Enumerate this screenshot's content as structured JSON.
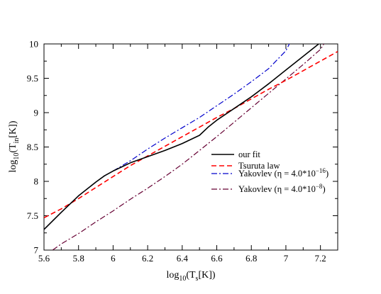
{
  "chart_data": {
    "type": "line",
    "title": "",
    "xlabel": {
      "base": "log",
      "sub": "10",
      "main": "(T",
      "sub2": "s",
      "tail": "[K])"
    },
    "ylabel": {
      "base": "log",
      "sub": "10",
      "main": "(T",
      "sub2": "in",
      "tail": "[K])"
    },
    "xlim": [
      5.6,
      7.3
    ],
    "ylim": [
      7.0,
      10.0
    ],
    "grid": false,
    "legend_position": "lower-right",
    "x_ticks": [
      5.6,
      5.8,
      6.0,
      6.2,
      6.4,
      6.6,
      6.8,
      7.0,
      7.2
    ],
    "x_tick_labels": [
      "5.6",
      "5.8",
      "6",
      "6.2",
      "6.4",
      "6.6",
      "6.8",
      "7",
      "7.2"
    ],
    "y_ticks": [
      7.0,
      7.5,
      8.0,
      8.5,
      9.0,
      9.5,
      10.0
    ],
    "y_tick_labels": [
      "7",
      "7.5",
      "8",
      "8.5",
      "9",
      "9.5",
      "10"
    ],
    "series": [
      {
        "name": "our fit",
        "color": "#000000",
        "dash": "solid",
        "x": [
          5.6,
          5.7,
          5.8,
          5.9,
          5.95,
          6.0,
          6.05,
          6.1,
          6.2,
          6.3,
          6.4,
          6.5,
          6.55,
          6.6,
          6.7,
          6.8,
          6.9,
          7.0,
          7.1,
          7.2
        ],
        "y": [
          7.3,
          7.55,
          7.79,
          7.99,
          8.08,
          8.15,
          8.21,
          8.27,
          8.36,
          8.45,
          8.55,
          8.67,
          8.79,
          8.89,
          9.06,
          9.23,
          9.42,
          9.62,
          9.82,
          10.02
        ]
      },
      {
        "name": "Tsuruta law",
        "color": "#ff0000",
        "dash": "dashed",
        "x": [
          5.6,
          5.7,
          5.8,
          5.9,
          6.0,
          6.1,
          6.2,
          6.3,
          6.4,
          6.5,
          6.6,
          6.7,
          6.8,
          6.9,
          7.0,
          7.1,
          7.2,
          7.3
        ],
        "y": [
          7.47,
          7.6,
          7.75,
          7.91,
          8.07,
          8.23,
          8.37,
          8.51,
          8.65,
          8.79,
          8.93,
          9.06,
          9.2,
          9.34,
          9.47,
          9.61,
          9.75,
          9.89
        ]
      },
      {
        "name": "Yakovlev (η = 4.0*10⁻¹⁶)",
        "color": "#0000cc",
        "dash": "dashdot",
        "x": [
          5.6,
          5.7,
          5.8,
          5.9,
          5.95,
          6.0,
          6.1,
          6.2,
          6.3,
          6.4,
          6.5,
          6.6,
          6.7,
          6.8,
          6.9,
          7.0,
          7.02
        ],
        "y": [
          7.3,
          7.55,
          7.79,
          7.99,
          8.08,
          8.15,
          8.3,
          8.47,
          8.63,
          8.78,
          8.93,
          9.1,
          9.27,
          9.45,
          9.64,
          9.9,
          10.0
        ]
      },
      {
        "name": "Yakovlev (η = 4.0*10⁻⁸)",
        "color": "#660033",
        "dash": "dashdot",
        "x": [
          5.65,
          5.7,
          5.8,
          5.9,
          6.0,
          6.1,
          6.2,
          6.3,
          6.4,
          6.5,
          6.6,
          6.7,
          6.8,
          6.9,
          7.0,
          7.1,
          7.2,
          7.22
        ],
        "y": [
          7.0,
          7.09,
          7.24,
          7.41,
          7.57,
          7.74,
          7.9,
          8.07,
          8.25,
          8.45,
          8.65,
          8.86,
          9.07,
          9.28,
          9.49,
          9.7,
          9.92,
          10.0
        ]
      }
    ],
    "legend": [
      {
        "label": "our fit",
        "color": "#000000",
        "dash": "solid"
      },
      {
        "label": "Tsuruta law",
        "color": "#ff0000",
        "dash": "dashed"
      },
      {
        "label_pre": "Yakovlev (η = 4.0*10",
        "label_sup": "−16",
        "label_post": ")",
        "color": "#0000cc",
        "dash": "dashdot"
      },
      {
        "label_pre": "Yakovlev (η = 4.0*10",
        "label_sup": "−8",
        "label_post": ")",
        "color": "#660033",
        "dash": "dashdot"
      }
    ]
  }
}
